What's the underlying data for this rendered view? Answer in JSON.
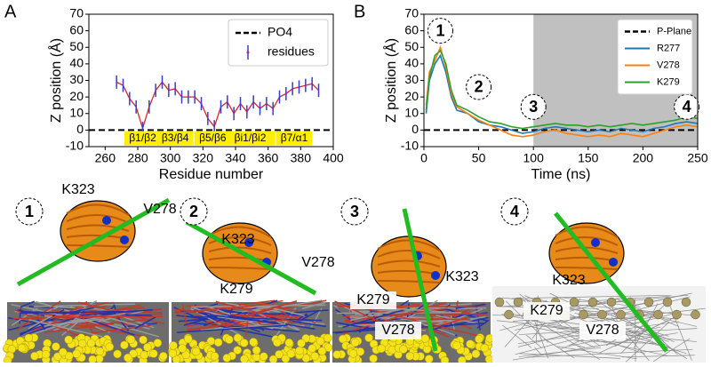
{
  "chart_data": [
    {
      "type": "errorbar",
      "panel_label": "A",
      "x_label": "Residue number",
      "y_label": "Z position (Å)",
      "x": [
        267,
        271,
        275,
        279,
        283,
        287,
        291,
        295,
        299,
        303,
        307,
        311,
        315,
        319,
        323,
        327,
        331,
        335,
        339,
        343,
        347,
        351,
        355,
        359,
        363,
        367,
        371,
        375,
        379,
        383,
        387,
        391
      ],
      "series": [
        {
          "name": "residues",
          "color": "#3b3bd6",
          "line_color": "#d62728",
          "values": [
            29,
            27,
            19,
            14,
            1,
            14,
            24,
            29,
            24,
            25,
            20,
            20,
            20,
            16,
            7,
            2,
            14,
            17,
            10,
            16,
            11,
            17,
            13,
            16,
            13,
            20,
            22,
            25,
            26,
            27,
            28,
            24
          ],
          "errors": [
            4,
            4,
            4,
            4,
            4,
            4,
            4,
            4,
            4,
            4,
            4,
            4,
            4,
            4,
            4,
            4,
            4,
            4,
            4,
            4,
            4,
            4,
            4,
            4,
            4,
            4,
            4,
            4,
            4,
            4,
            4,
            4
          ]
        }
      ],
      "reference_lines": [
        {
          "name": "PO4",
          "value": 0,
          "color": "#000000"
        }
      ],
      "annotations": [
        {
          "text": "β1/β2",
          "x": 283,
          "y": -5
        },
        {
          "text": "β3/β4",
          "x": 303,
          "y": -5
        },
        {
          "text": "β5/β6",
          "x": 326,
          "y": -5
        },
        {
          "text": "βi1/βi2",
          "x": 349,
          "y": -5
        },
        {
          "text": "β7/α1",
          "x": 376,
          "y": -5
        }
      ],
      "annotation_color": "#ffee00",
      "xlim": [
        250,
        400
      ],
      "xticks": [
        260,
        280,
        300,
        320,
        340,
        360,
        380,
        400
      ],
      "ylim": [
        -10,
        70
      ],
      "yticks": [
        -10,
        0,
        10,
        20,
        30,
        40,
        50,
        60,
        70
      ],
      "legend": "upper right"
    },
    {
      "type": "line",
      "panel_label": "B",
      "x_label": "Time (ns)",
      "y_label": "Z position (Å)",
      "x": [
        2,
        5,
        10,
        15,
        20,
        25,
        30,
        40,
        50,
        60,
        70,
        80,
        90,
        100,
        110,
        120,
        130,
        140,
        150,
        160,
        170,
        180,
        190,
        200,
        210,
        220,
        230,
        240,
        250
      ],
      "series": [
        {
          "name": "R277",
          "color": "#1f77b4",
          "values": [
            10,
            30,
            40,
            45,
            35,
            20,
            12,
            10,
            5,
            3,
            2,
            0,
            -2,
            -1,
            1,
            2,
            1,
            0,
            -1,
            0,
            -1,
            1,
            0,
            -1,
            1,
            2,
            4,
            5,
            4
          ]
        },
        {
          "name": "V278",
          "color": "#ff7f0e",
          "values": [
            15,
            35,
            42,
            50,
            38,
            22,
            14,
            10,
            6,
            3,
            0,
            -3,
            -4,
            -3,
            -1,
            0,
            -2,
            -3,
            -4,
            -3,
            -4,
            -2,
            -3,
            -4,
            -2,
            0,
            2,
            3,
            2
          ]
        },
        {
          "name": "K279",
          "color": "#2ca02c",
          "values": [
            12,
            32,
            45,
            48,
            40,
            24,
            15,
            12,
            8,
            5,
            4,
            2,
            1,
            2,
            3,
            4,
            3,
            3,
            2,
            3,
            2,
            3,
            4,
            3,
            4,
            5,
            6,
            8,
            7
          ]
        }
      ],
      "reference_lines": [
        {
          "name": "P-Plane",
          "value": 0,
          "color": "#000000"
        }
      ],
      "shaded_x": [
        100,
        250
      ],
      "shade_color": "#c0c0c0",
      "annotations": [
        {
          "text": "1",
          "x": 15,
          "y": 60
        },
        {
          "text": "2",
          "x": 50,
          "y": 26
        },
        {
          "text": "3",
          "x": 100,
          "y": 14
        },
        {
          "text": "4",
          "x": 240,
          "y": 14
        }
      ],
      "xlim": [
        0,
        250
      ],
      "xticks": [
        0,
        50,
        100,
        150,
        200,
        250
      ],
      "ylim": [
        -10,
        70
      ],
      "yticks": [
        -10,
        0,
        10,
        20,
        30,
        40,
        50,
        60,
        70
      ],
      "legend": "upper right"
    }
  ],
  "snapshots": [
    {
      "number": "1",
      "labels": [
        "K323",
        "V278"
      ]
    },
    {
      "number": "2",
      "labels": [
        "K323",
        "V278",
        "K279"
      ]
    },
    {
      "number": "3",
      "labels": [
        "K323",
        "K279",
        "V278"
      ]
    },
    {
      "number": "4",
      "labels": [
        "K323",
        "K279",
        "V278"
      ]
    }
  ]
}
